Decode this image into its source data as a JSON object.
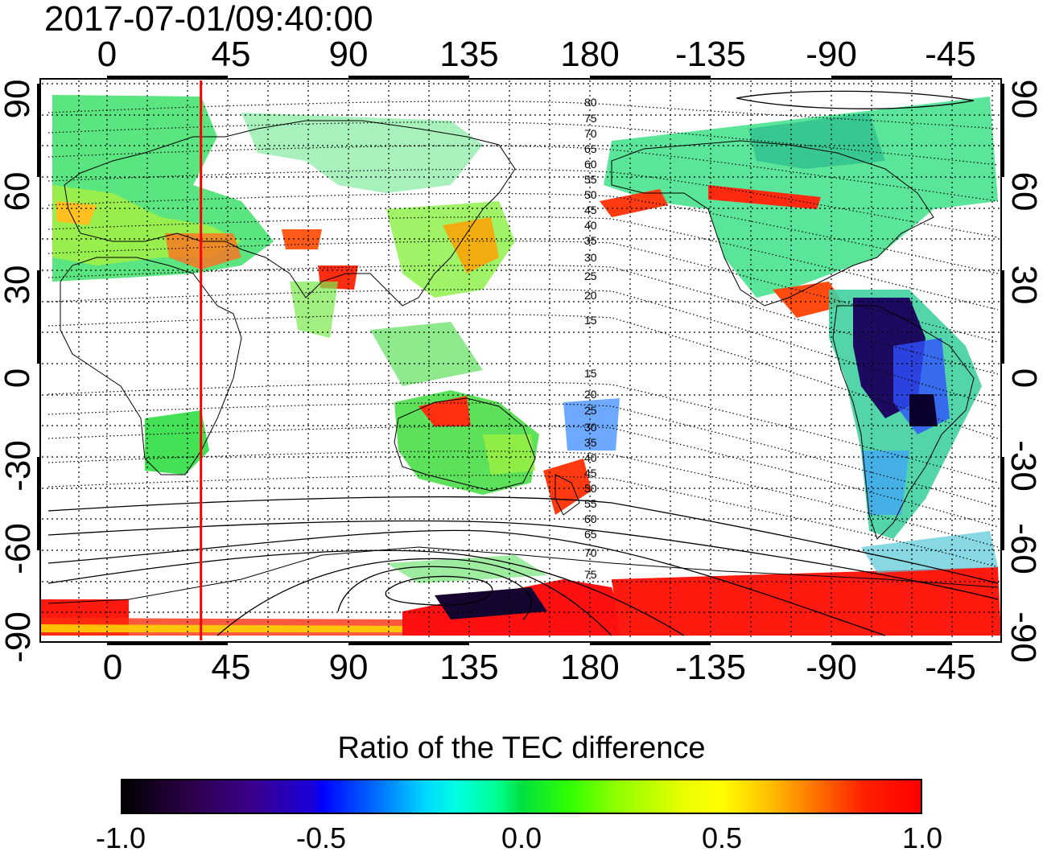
{
  "timestamp": "2017-07-01/09:40:00",
  "map": {
    "top_axis_ticks": [
      "0",
      "45",
      "90",
      "135",
      "180",
      "-135",
      "-90",
      "-45"
    ],
    "bottom_axis_ticks": [
      "0",
      "45",
      "90",
      "135",
      "180",
      "-135",
      "-90",
      "-45"
    ],
    "left_axis_ticks": [
      "90",
      "60",
      "30",
      "0",
      "-30",
      "-60",
      "-90"
    ],
    "right_axis_ticks": [
      "90",
      "60",
      "30",
      "0",
      "-30",
      "-60",
      "-90"
    ],
    "north_contour_labels": [
      "80",
      "75",
      "70",
      "65",
      "60",
      "55",
      "50",
      "45",
      "40",
      "35",
      "30",
      "25",
      "20",
      "15"
    ],
    "south_contour_labels": [
      "15",
      "20",
      "25",
      "30",
      "35",
      "40",
      "45",
      "50",
      "55",
      "60",
      "65",
      "70",
      "75"
    ],
    "meridian_marker_longitude": 35,
    "marker_color": "#ff0000"
  },
  "colorbar": {
    "title": "Ratio of the TEC difference",
    "labels": [
      "-1.0",
      "-0.5",
      "0.0",
      "0.5",
      "1.0"
    ],
    "min": -1.0,
    "max": 1.0
  }
}
